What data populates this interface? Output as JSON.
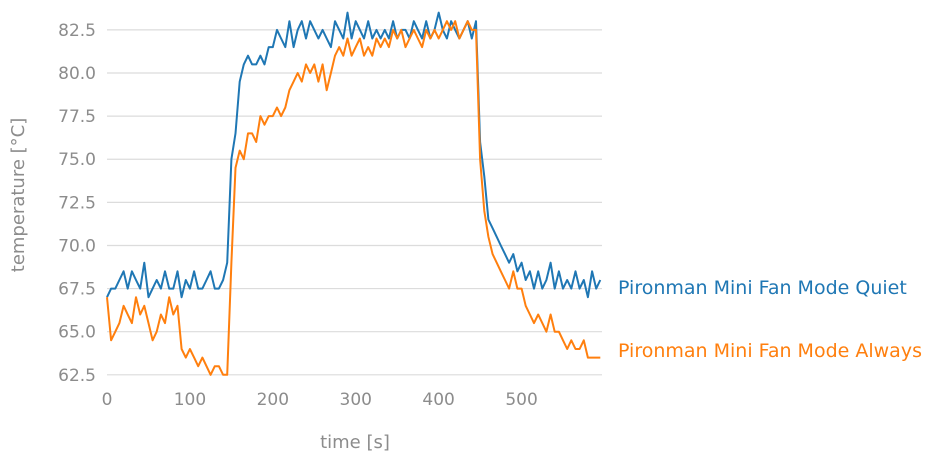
{
  "chart_data": {
    "type": "line",
    "xlabel": "time [s]",
    "ylabel": "temperature [°C]",
    "xlim": [
      0,
      597
    ],
    "ylim": [
      62.2,
      84.0
    ],
    "xticks": [
      0,
      100,
      200,
      300,
      400,
      500
    ],
    "yticks": [
      62.5,
      65.0,
      67.5,
      70.0,
      72.5,
      75.0,
      77.5,
      80.0,
      82.5
    ],
    "ytick_labels": [
      "62.5",
      "65.0",
      "67.5",
      "70.0",
      "72.5",
      "75.0",
      "77.5",
      "80.0",
      "82.5"
    ],
    "grid": "horizontal",
    "legend": "inline-right",
    "series": [
      {
        "name": "Pironman Mini Fan Mode Quiet",
        "color": "#1f77b4",
        "x": [
          0,
          5,
          10,
          15,
          20,
          25,
          30,
          35,
          40,
          45,
          50,
          55,
          60,
          65,
          70,
          75,
          80,
          85,
          90,
          95,
          100,
          105,
          110,
          115,
          120,
          125,
          130,
          135,
          140,
          145,
          150,
          155,
          160,
          165,
          170,
          175,
          180,
          185,
          190,
          195,
          200,
          205,
          210,
          215,
          220,
          225,
          230,
          235,
          240,
          245,
          250,
          255,
          260,
          265,
          270,
          275,
          280,
          285,
          290,
          295,
          300,
          305,
          310,
          315,
          320,
          325,
          330,
          335,
          340,
          345,
          350,
          355,
          360,
          365,
          370,
          375,
          380,
          385,
          390,
          395,
          400,
          405,
          410,
          415,
          420,
          425,
          430,
          435,
          440,
          445,
          450,
          455,
          460,
          465,
          470,
          475,
          480,
          485,
          490,
          495,
          500,
          505,
          510,
          515,
          520,
          525,
          530,
          535,
          540,
          545,
          550,
          555,
          560,
          565,
          570,
          575,
          580,
          585,
          590,
          595
        ],
        "values": [
          67.0,
          67.5,
          67.5,
          68.0,
          68.5,
          67.5,
          68.5,
          68.0,
          67.5,
          69.0,
          67.0,
          67.5,
          68.0,
          67.5,
          68.5,
          67.5,
          67.5,
          68.5,
          67.0,
          68.0,
          67.5,
          68.5,
          67.5,
          67.5,
          68.0,
          68.5,
          67.5,
          67.5,
          68.0,
          69.0,
          75.0,
          76.5,
          79.5,
          80.5,
          81.0,
          80.5,
          80.5,
          81.0,
          80.5,
          81.5,
          81.5,
          82.5,
          82.0,
          81.5,
          83.0,
          81.5,
          82.5,
          83.0,
          82.0,
          83.0,
          82.5,
          82.0,
          82.5,
          82.0,
          81.5,
          83.0,
          82.5,
          82.0,
          83.5,
          82.0,
          83.0,
          82.5,
          82.0,
          83.0,
          82.0,
          82.5,
          82.0,
          82.5,
          82.0,
          83.0,
          82.0,
          82.5,
          82.5,
          82.0,
          83.0,
          82.5,
          82.0,
          83.0,
          82.0,
          82.5,
          83.5,
          82.5,
          82.0,
          83.0,
          82.5,
          82.0,
          82.5,
          83.0,
          82.0,
          83.0,
          76.0,
          74.0,
          71.5,
          71.0,
          70.5,
          70.0,
          69.5,
          69.0,
          69.5,
          68.5,
          69.0,
          68.0,
          68.5,
          67.5,
          68.5,
          67.5,
          68.0,
          69.0,
          67.5,
          68.5,
          67.5,
          68.0,
          67.5,
          68.5,
          67.5,
          68.0,
          67.0,
          68.5,
          67.5,
          68.0
        ]
      },
      {
        "name": "Pironman Mini Fan Mode Always",
        "color": "#ff7f0e",
        "x": [
          0,
          5,
          10,
          15,
          20,
          25,
          30,
          35,
          40,
          45,
          50,
          55,
          60,
          65,
          70,
          75,
          80,
          85,
          90,
          95,
          100,
          105,
          110,
          115,
          120,
          125,
          130,
          135,
          140,
          145,
          150,
          155,
          160,
          165,
          170,
          175,
          180,
          185,
          190,
          195,
          200,
          205,
          210,
          215,
          220,
          225,
          230,
          235,
          240,
          245,
          250,
          255,
          260,
          265,
          270,
          275,
          280,
          285,
          290,
          295,
          300,
          305,
          310,
          315,
          320,
          325,
          330,
          335,
          340,
          345,
          350,
          355,
          360,
          365,
          370,
          375,
          380,
          385,
          390,
          395,
          400,
          405,
          410,
          415,
          420,
          425,
          430,
          435,
          440,
          445,
          450,
          455,
          460,
          465,
          470,
          475,
          480,
          485,
          490,
          495,
          500,
          505,
          510,
          515,
          520,
          525,
          530,
          535,
          540,
          545,
          550,
          555,
          560,
          565,
          570,
          575,
          580,
          585,
          590,
          595
        ],
        "values": [
          67.0,
          64.5,
          65.0,
          65.5,
          66.5,
          66.0,
          65.5,
          67.0,
          66.0,
          66.5,
          65.5,
          64.5,
          65.0,
          66.0,
          65.5,
          67.0,
          66.0,
          66.5,
          64.0,
          63.5,
          64.0,
          63.5,
          63.0,
          63.5,
          63.0,
          62.5,
          63.0,
          63.0,
          62.5,
          62.5,
          69.0,
          74.5,
          75.5,
          75.0,
          76.5,
          76.5,
          76.0,
          77.5,
          77.0,
          77.5,
          77.5,
          78.0,
          77.5,
          78.0,
          79.0,
          79.5,
          80.0,
          79.5,
          80.5,
          80.0,
          80.5,
          79.5,
          80.5,
          79.0,
          80.0,
          81.0,
          81.5,
          81.0,
          82.0,
          81.0,
          81.5,
          82.0,
          81.0,
          81.5,
          81.0,
          82.0,
          81.5,
          82.0,
          81.5,
          82.5,
          82.0,
          82.5,
          81.5,
          82.0,
          82.5,
          82.0,
          81.5,
          82.5,
          82.0,
          82.5,
          82.0,
          82.5,
          83.0,
          82.5,
          83.0,
          82.0,
          82.5,
          83.0,
          82.5,
          82.5,
          75.0,
          72.0,
          70.5,
          69.5,
          69.0,
          68.5,
          68.0,
          67.5,
          68.5,
          67.5,
          67.5,
          66.5,
          66.0,
          65.5,
          66.0,
          65.5,
          65.0,
          66.0,
          65.0,
          65.0,
          64.5,
          64.0,
          64.5,
          64.0,
          64.0,
          64.5,
          63.5,
          63.5,
          63.5,
          63.5
        ]
      }
    ]
  }
}
